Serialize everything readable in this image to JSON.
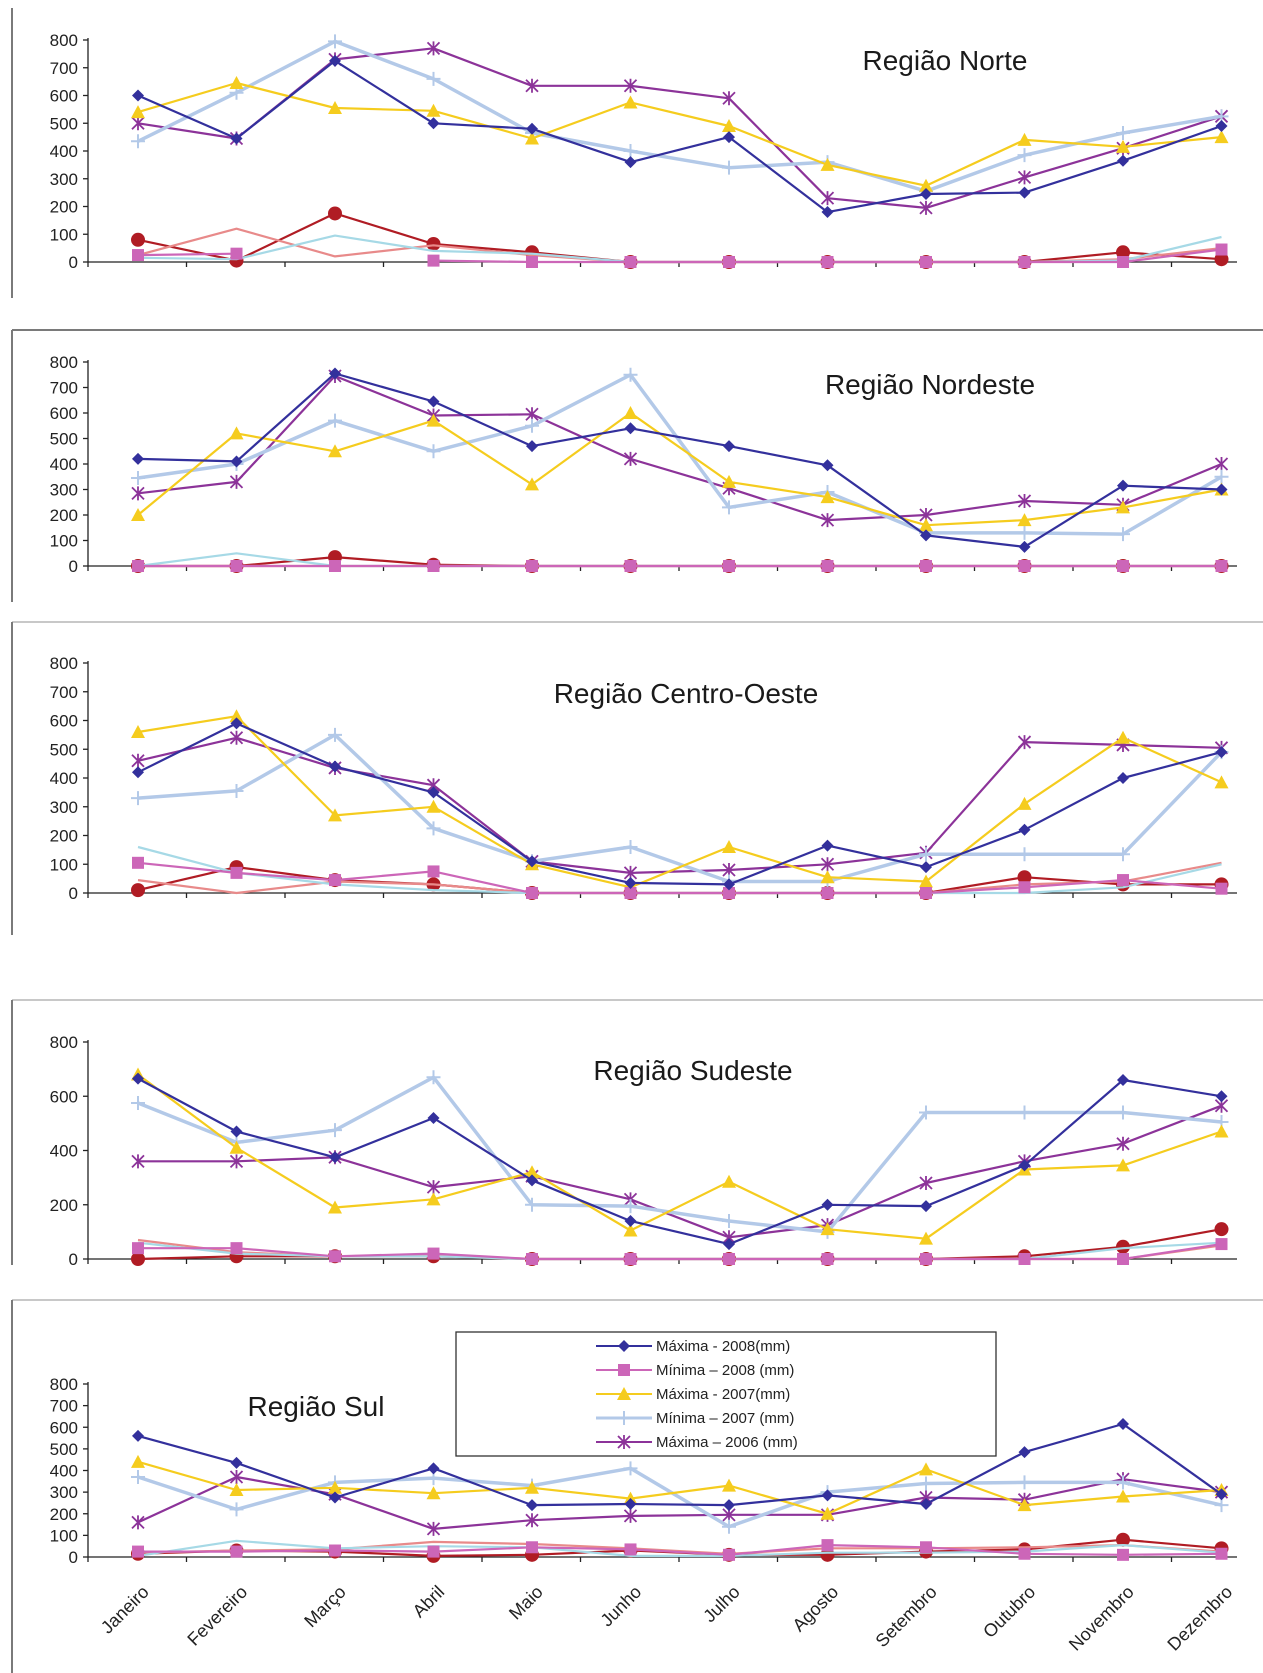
{
  "chart_data": [
    {
      "type": "line",
      "title": "Região Norte",
      "ylim": [
        0,
        800
      ],
      "yticks": [
        "0",
        "100",
        "200",
        "300",
        "400",
        "500",
        "600",
        "700",
        "800"
      ],
      "categories": [
        "Janeiro",
        "Fevereiro",
        "Março",
        "Abril",
        "Maio",
        "Junho",
        "Julho",
        "Agosto",
        "Setembro",
        "Outubro",
        "Novembro",
        "Dezembro"
      ],
      "grid": false,
      "series": [
        {
          "color": "#33309c",
          "marker": "diamond",
          "values": [
            600,
            445,
            725,
            500,
            480,
            360,
            450,
            180,
            245,
            250,
            365,
            490
          ]
        },
        {
          "color": "#cc66b8",
          "marker": "square",
          "values": [
            25,
            30,
            null,
            5,
            0,
            0,
            0,
            0,
            0,
            0,
            0,
            45
          ]
        },
        {
          "color": "#f5cc1e",
          "marker": "triangle",
          "values": [
            540,
            645,
            555,
            545,
            445,
            575,
            490,
            350,
            275,
            440,
            415,
            450
          ]
        },
        {
          "color": "#b3c9e8",
          "marker": "plus",
          "values": [
            435,
            610,
            795,
            660,
            465,
            400,
            340,
            360,
            255,
            385,
            465,
            525
          ]
        },
        {
          "color": "#8c3399",
          "marker": "star",
          "values": [
            500,
            445,
            730,
            770,
            635,
            635,
            590,
            230,
            195,
            305,
            410,
            525
          ]
        },
        {
          "color": "#a6d9e6",
          "marker": "none",
          "values": [
            15,
            10,
            95,
            40,
            30,
            0,
            0,
            0,
            0,
            0,
            5,
            90
          ]
        },
        {
          "color": "#e88a8a",
          "marker": "none",
          "values": [
            25,
            120,
            20,
            60,
            25,
            0,
            0,
            0,
            0,
            0,
            10,
            50
          ]
        },
        {
          "color": "#b01c24",
          "marker": "circle",
          "values": [
            80,
            5,
            175,
            65,
            35,
            0,
            0,
            0,
            0,
            0,
            35,
            10
          ]
        }
      ]
    },
    {
      "type": "line",
      "title": "Região Nordeste",
      "ylim": [
        0,
        800
      ],
      "yticks": [
        "0",
        "100",
        "200",
        "300",
        "400",
        "500",
        "600",
        "700",
        "800"
      ],
      "categories": [
        "Janeiro",
        "Fevereiro",
        "Março",
        "Abril",
        "Maio",
        "Junho",
        "Julho",
        "Agosto",
        "Setembro",
        "Outubro",
        "Novembro",
        "Dezembro"
      ],
      "grid": false,
      "series": [
        {
          "color": "#33309c",
          "marker": "diamond",
          "values": [
            420,
            410,
            755,
            645,
            470,
            540,
            470,
            395,
            120,
            75,
            315,
            300
          ]
        },
        {
          "color": "#cc66b8",
          "marker": "square",
          "values": [
            0,
            0,
            0,
            0,
            0,
            0,
            0,
            0,
            0,
            0,
            0,
            0
          ]
        },
        {
          "color": "#f5cc1e",
          "marker": "triangle",
          "values": [
            200,
            520,
            450,
            570,
            320,
            600,
            330,
            270,
            160,
            180,
            230,
            300
          ]
        },
        {
          "color": "#b3c9e8",
          "marker": "plus",
          "values": [
            345,
            400,
            570,
            450,
            550,
            750,
            230,
            290,
            130,
            130,
            125,
            350
          ]
        },
        {
          "color": "#8c3399",
          "marker": "star",
          "values": [
            285,
            330,
            745,
            590,
            595,
            420,
            305,
            180,
            200,
            255,
            240,
            400
          ]
        },
        {
          "color": "#a6d9e6",
          "marker": "none",
          "values": [
            0,
            50,
            0,
            0,
            0,
            0,
            0,
            0,
            0,
            0,
            0,
            0
          ]
        },
        {
          "color": "#e88a8a",
          "marker": "none",
          "values": [
            0,
            0,
            0,
            0,
            0,
            0,
            0,
            0,
            0,
            0,
            0,
            0
          ]
        },
        {
          "color": "#b01c24",
          "marker": "circle",
          "values": [
            0,
            0,
            35,
            5,
            0,
            0,
            0,
            0,
            0,
            0,
            0,
            0
          ]
        }
      ]
    },
    {
      "type": "line",
      "title": "Região Centro-Oeste",
      "ylim": [
        0,
        800
      ],
      "yticks": [
        "0",
        "100",
        "200",
        "300",
        "400",
        "500",
        "600",
        "700",
        "800"
      ],
      "categories": [
        "Janeiro",
        "Fevereiro",
        "Março",
        "Abril",
        "Maio",
        "Junho",
        "Julho",
        "Agosto",
        "Setembro",
        "Outubro",
        "Novembro",
        "Dezembro"
      ],
      "grid": false,
      "series": [
        {
          "color": "#33309c",
          "marker": "diamond",
          "values": [
            420,
            590,
            440,
            350,
            110,
            35,
            30,
            165,
            90,
            220,
            400,
            490
          ]
        },
        {
          "color": "#cc66b8",
          "marker": "square",
          "values": [
            105,
            70,
            45,
            75,
            0,
            0,
            0,
            0,
            0,
            20,
            45,
            15
          ]
        },
        {
          "color": "#f5cc1e",
          "marker": "triangle",
          "values": [
            560,
            615,
            270,
            300,
            100,
            20,
            160,
            55,
            40,
            310,
            540,
            385
          ]
        },
        {
          "color": "#b3c9e8",
          "marker": "plus",
          "values": [
            330,
            355,
            550,
            225,
            110,
            160,
            40,
            40,
            135,
            135,
            135,
            490
          ]
        },
        {
          "color": "#8c3399",
          "marker": "star",
          "values": [
            460,
            540,
            435,
            375,
            110,
            70,
            80,
            100,
            140,
            525,
            515,
            505
          ]
        },
        {
          "color": "#a6d9e6",
          "marker": "none",
          "values": [
            160,
            70,
            30,
            10,
            0,
            0,
            0,
            0,
            0,
            0,
            20,
            100
          ]
        },
        {
          "color": "#e88a8a",
          "marker": "none",
          "values": [
            45,
            0,
            40,
            30,
            0,
            0,
            0,
            0,
            0,
            30,
            40,
            105
          ]
        },
        {
          "color": "#b01c24",
          "marker": "circle",
          "values": [
            10,
            90,
            45,
            30,
            0,
            0,
            0,
            0,
            0,
            55,
            30,
            30
          ]
        }
      ]
    },
    {
      "type": "line",
      "title": "Região Sudeste",
      "ylim": [
        0,
        800
      ],
      "yticks": [
        "0",
        "200",
        "400",
        "600",
        "800"
      ],
      "categories": [
        "Janeiro",
        "Fevereiro",
        "Março",
        "Abril",
        "Maio",
        "Junho",
        "Julho",
        "Agosto",
        "Setembro",
        "Outubro",
        "Novembro",
        "Dezembro"
      ],
      "grid": false,
      "series": [
        {
          "color": "#33309c",
          "marker": "diamond",
          "values": [
            665,
            470,
            375,
            520,
            290,
            140,
            55,
            200,
            195,
            345,
            660,
            600
          ]
        },
        {
          "color": "#cc66b8",
          "marker": "square",
          "values": [
            40,
            40,
            10,
            20,
            0,
            0,
            0,
            0,
            0,
            0,
            0,
            55
          ]
        },
        {
          "color": "#f5cc1e",
          "marker": "triangle",
          "values": [
            680,
            410,
            190,
            220,
            320,
            105,
            285,
            110,
            75,
            330,
            345,
            470
          ]
        },
        {
          "color": "#b3c9e8",
          "marker": "plus",
          "values": [
            575,
            430,
            475,
            670,
            200,
            195,
            140,
            100,
            540,
            540,
            540,
            505
          ]
        },
        {
          "color": "#8c3399",
          "marker": "star",
          "values": [
            360,
            360,
            375,
            265,
            305,
            220,
            80,
            125,
            280,
            360,
            425,
            565
          ]
        },
        {
          "color": "#a6d9e6",
          "marker": "none",
          "values": [
            60,
            20,
            10,
            10,
            0,
            0,
            0,
            0,
            0,
            0,
            40,
            60
          ]
        },
        {
          "color": "#e88a8a",
          "marker": "none",
          "values": [
            70,
            25,
            10,
            15,
            0,
            0,
            0,
            0,
            0,
            0,
            0,
            50
          ]
        },
        {
          "color": "#b01c24",
          "marker": "circle",
          "values": [
            0,
            10,
            10,
            10,
            0,
            0,
            0,
            0,
            0,
            10,
            45,
            110
          ]
        }
      ]
    },
    {
      "type": "line",
      "title": "Região Sul",
      "ylim": [
        0,
        800
      ],
      "yticks": [
        "0",
        "100",
        "200",
        "300",
        "400",
        "500",
        "600",
        "700",
        "800"
      ],
      "categories": [
        "Janeiro",
        "Fevereiro",
        "Março",
        "Abril",
        "Maio",
        "Junho",
        "Julho",
        "Agosto",
        "Setembro",
        "Outubro",
        "Novembro",
        "Dezembro"
      ],
      "grid": false,
      "legend_position": "top-center",
      "legend": [
        "Máxima - 2008(mm)",
        "Mínima – 2008 (mm)",
        "Máxima - 2007(mm)",
        "Mínima – 2007 (mm)",
        "Máxima – 2006 (mm)"
      ],
      "series": [
        {
          "name": "Máxima - 2008(mm)",
          "color": "#33309c",
          "marker": "diamond",
          "values": [
            560,
            435,
            275,
            410,
            240,
            245,
            240,
            285,
            245,
            485,
            615,
            290
          ]
        },
        {
          "name": "Mínima – 2008 (mm)",
          "color": "#cc66b8",
          "marker": "square",
          "values": [
            25,
            25,
            30,
            25,
            45,
            35,
            10,
            55,
            45,
            15,
            10,
            15
          ]
        },
        {
          "name": "Máxima - 2007(mm)",
          "color": "#f5cc1e",
          "marker": "triangle",
          "values": [
            440,
            310,
            320,
            295,
            320,
            270,
            330,
            200,
            405,
            240,
            280,
            310
          ]
        },
        {
          "name": "Mínima – 2007 (mm)",
          "color": "#b3c9e8",
          "marker": "plus",
          "values": [
            370,
            220,
            345,
            365,
            330,
            410,
            140,
            300,
            340,
            345,
            345,
            240
          ]
        },
        {
          "name": "Máxima – 2006 (mm)",
          "color": "#8c3399",
          "marker": "star",
          "values": [
            160,
            370,
            290,
            130,
            170,
            190,
            195,
            195,
            275,
            265,
            360,
            300
          ]
        },
        {
          "color": "#a6d9e6",
          "marker": "none",
          "values": [
            5,
            75,
            40,
            50,
            45,
            5,
            5,
            20,
            20,
            25,
            55,
            20
          ]
        },
        {
          "color": "#e88a8a",
          "marker": "none",
          "values": [
            20,
            30,
            35,
            70,
            60,
            40,
            15,
            40,
            40,
            45,
            55,
            25
          ]
        },
        {
          "color": "#b01c24",
          "marker": "circle",
          "values": [
            15,
            30,
            25,
            5,
            10,
            30,
            10,
            10,
            25,
            35,
            80,
            40
          ]
        }
      ]
    }
  ]
}
